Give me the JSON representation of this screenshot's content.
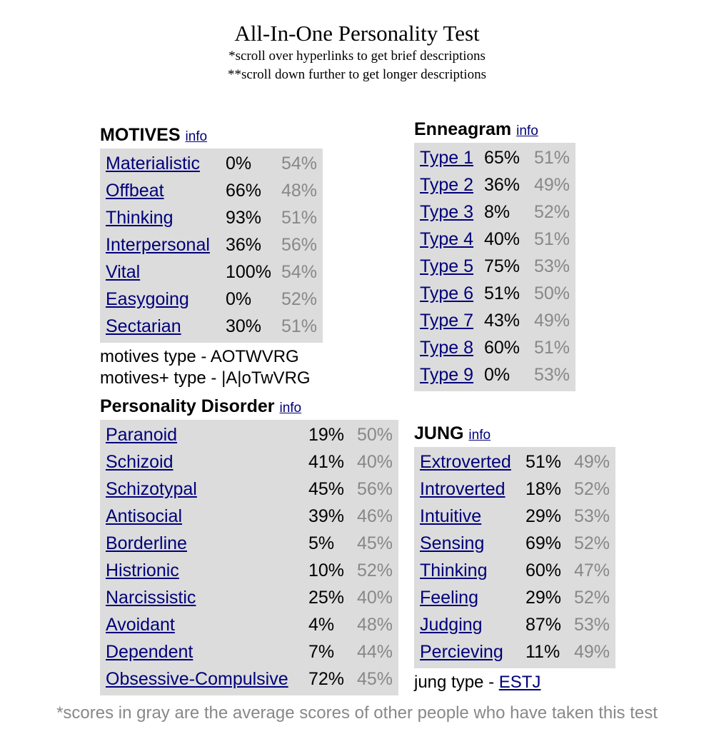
{
  "header": {
    "title": "All-In-One Personality Test",
    "note1": "*scroll over hyperlinks to get brief descriptions",
    "note2": "**scroll down further to get longer descriptions"
  },
  "motives": {
    "title": "MOTIVES",
    "info": "info",
    "rows": [
      {
        "label": "Materialistic",
        "you": "0%",
        "avg": "54%"
      },
      {
        "label": "Offbeat",
        "you": "66%",
        "avg": "48%"
      },
      {
        "label": "Thinking",
        "you": "93%",
        "avg": "51%"
      },
      {
        "label": "Interpersonal",
        "you": "36%",
        "avg": "56%"
      },
      {
        "label": "Vital",
        "you": "100%",
        "avg": "54%"
      },
      {
        "label": "Easygoing",
        "you": "0%",
        "avg": "52%"
      },
      {
        "label": "Sectarian",
        "you": "30%",
        "avg": "51%"
      }
    ],
    "type_line": "motives type - AOTWVRG",
    "type_plus_line": "motives+ type - |A|oTwVRG"
  },
  "enneagram": {
    "title": "Enneagram",
    "info": "info",
    "rows": [
      {
        "label": "Type 1",
        "you": "65%",
        "avg": "51%"
      },
      {
        "label": "Type 2",
        "you": "36%",
        "avg": "49%"
      },
      {
        "label": "Type 3",
        "you": "8%",
        "avg": "52%"
      },
      {
        "label": "Type 4",
        "you": "40%",
        "avg": "51%"
      },
      {
        "label": "Type 5",
        "you": "75%",
        "avg": "53%"
      },
      {
        "label": "Type 6",
        "you": "51%",
        "avg": "50%"
      },
      {
        "label": "Type 7",
        "you": "43%",
        "avg": "49%"
      },
      {
        "label": "Type 8",
        "you": "60%",
        "avg": "51%"
      },
      {
        "label": "Type 9",
        "you": "0%",
        "avg": "53%"
      }
    ]
  },
  "disorder": {
    "title": "Personality Disorder",
    "info": "info",
    "rows": [
      {
        "label": "Paranoid",
        "you": "19%",
        "avg": "50%"
      },
      {
        "label": "Schizoid",
        "you": "41%",
        "avg": "40%"
      },
      {
        "label": "Schizotypal",
        "you": "45%",
        "avg": "56%"
      },
      {
        "label": "Antisocial",
        "you": "39%",
        "avg": "46%"
      },
      {
        "label": "Borderline",
        "you": "5%",
        "avg": "45%"
      },
      {
        "label": "Histrionic",
        "you": "10%",
        "avg": "52%"
      },
      {
        "label": "Narcissistic",
        "you": "25%",
        "avg": "40%"
      },
      {
        "label": "Avoidant",
        "you": "4%",
        "avg": "48%"
      },
      {
        "label": "Dependent",
        "you": "7%",
        "avg": "44%"
      },
      {
        "label": "Obsessive-Compulsive",
        "you": "72%",
        "avg": "45%"
      }
    ]
  },
  "jung": {
    "title": "JUNG",
    "info": "info",
    "rows": [
      {
        "label": "Extroverted",
        "you": "51%",
        "avg": "49%"
      },
      {
        "label": "Introverted",
        "you": "18%",
        "avg": "52%"
      },
      {
        "label": "Intuitive",
        "you": "29%",
        "avg": "53%"
      },
      {
        "label": "Sensing",
        "you": "69%",
        "avg": "52%"
      },
      {
        "label": "Thinking",
        "you": "60%",
        "avg": "47%"
      },
      {
        "label": "Feeling",
        "you": "29%",
        "avg": "52%"
      },
      {
        "label": "Judging",
        "you": "87%",
        "avg": "53%"
      },
      {
        "label": "Percieving",
        "you": "11%",
        "avg": "49%"
      }
    ],
    "type_prefix": "jung type - ",
    "type_value": "ESTJ"
  },
  "footnote": "*scores in gray are the average scores of other people who have taken this test"
}
